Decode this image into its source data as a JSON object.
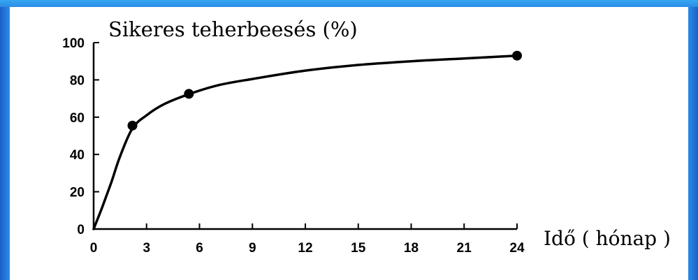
{
  "chart_data": {
    "type": "line",
    "title": "Sikeres teherbeesés (%)",
    "xlabel": "Idő ( hónap )",
    "ylabel": "",
    "xlim": [
      0,
      24
    ],
    "ylim": [
      0,
      100
    ],
    "x_ticks": [
      0,
      3,
      6,
      9,
      12,
      15,
      18,
      21,
      24
    ],
    "y_ticks": [
      0,
      20,
      40,
      60,
      80,
      100
    ],
    "grid": false,
    "series": [
      {
        "curve": [
          [
            0,
            0
          ],
          [
            0.5,
            12
          ],
          [
            1,
            25
          ],
          [
            1.5,
            39
          ],
          [
            2.2,
            54
          ],
          [
            3,
            61
          ],
          [
            4,
            67
          ],
          [
            5.3,
            72
          ],
          [
            7,
            77
          ],
          [
            9,
            80.5
          ],
          [
            12,
            85
          ],
          [
            15,
            88
          ],
          [
            18,
            90
          ],
          [
            21,
            91.5
          ],
          [
            24,
            93
          ]
        ],
        "points": [
          [
            2.2,
            55.5
          ],
          [
            5.4,
            72.5
          ],
          [
            24,
            93
          ]
        ]
      }
    ]
  }
}
